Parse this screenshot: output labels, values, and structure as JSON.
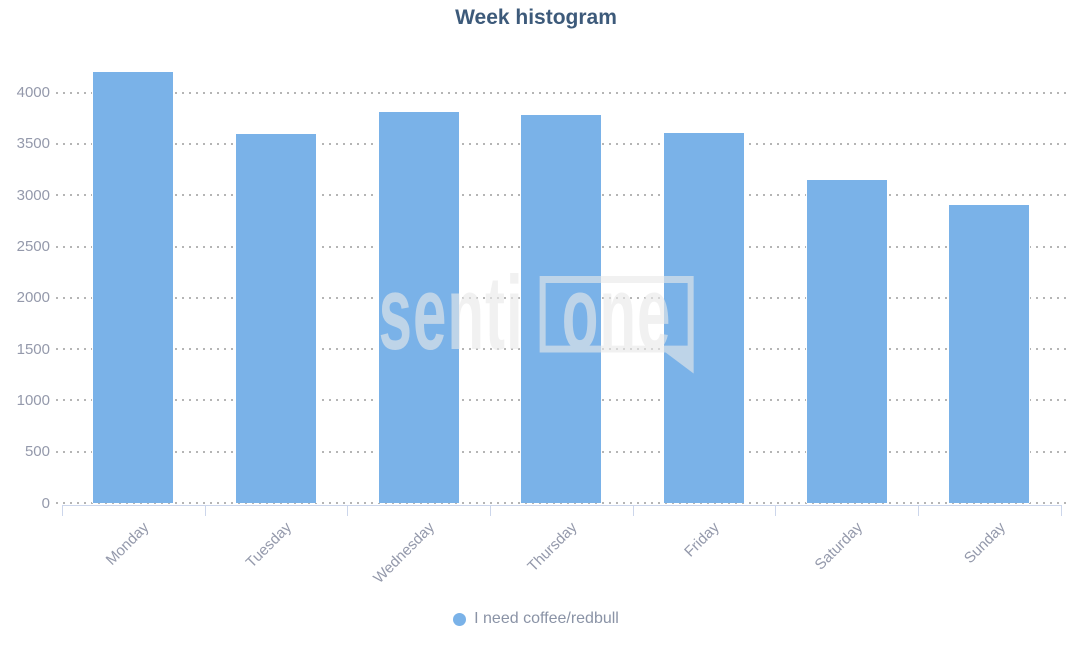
{
  "title": "Week histogram",
  "legend": {
    "label": "I need coffee/redbull"
  },
  "watermark": {
    "part1": "senti",
    "part2": "one"
  },
  "colors": {
    "bar": "#7ab2e8",
    "title_text": "#3d5a7a",
    "axis_label": "#9499ab",
    "legend_text": "#8a93a6",
    "gridline": "#b5b5b5",
    "axis_line": "#ccd6eb",
    "watermark": "#e9e9e9"
  },
  "chart_data": {
    "type": "bar",
    "title": "Week histogram",
    "categories": [
      "Monday",
      "Tuesday",
      "Wednesday",
      "Thursday",
      "Friday",
      "Saturday",
      "Sunday"
    ],
    "series": [
      {
        "name": "I need coffee/redbull",
        "values": [
          4210,
          3610,
          3825,
          3790,
          3620,
          3160,
          2915
        ]
      }
    ],
    "xlabel": "",
    "ylabel": "",
    "ylim": [
      0,
      4400
    ],
    "yticks": [
      0,
      500,
      1000,
      1500,
      2000,
      2500,
      3000,
      3500,
      4000
    ],
    "grid": "horizontal-dotted",
    "legend_position": "bottom",
    "bar_color": "#7ab2e8"
  }
}
